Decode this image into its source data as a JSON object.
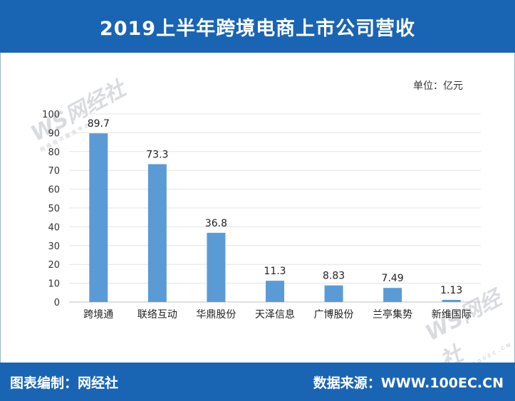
{
  "header": {
    "title": "2019上半年跨境电商上市公司营收"
  },
  "unit": "单位：亿元",
  "footer": {
    "left": "图表编制：网经社",
    "right": "数据来源：WWW.100EC.CN"
  },
  "watermark": {
    "logo": "WS网经社",
    "sub": "网络经济服务平台",
    "sub2": "WWW.100EC.CN"
  },
  "colors": {
    "banner": "#1a64b4",
    "bar": "#5b9bd5"
  },
  "chart_data": {
    "type": "bar",
    "title": "2019上半年跨境电商上市公司营收",
    "ylabel": "单位：亿元",
    "ylim": [
      0,
      100
    ],
    "yticks": [
      0,
      10,
      20,
      30,
      40,
      50,
      60,
      70,
      80,
      90,
      100
    ],
    "grid": true,
    "categories": [
      "跨境通",
      "联络互动",
      "华鼎股份",
      "天泽信息",
      "广博股份",
      "兰亭集势",
      "新维国际"
    ],
    "values": [
      89.7,
      73.3,
      36.8,
      11.3,
      8.83,
      7.49,
      1.13
    ],
    "value_labels": [
      "89.7",
      "73.3",
      "36.8",
      "11.3",
      "8.83",
      "7.49",
      "1.13"
    ]
  }
}
